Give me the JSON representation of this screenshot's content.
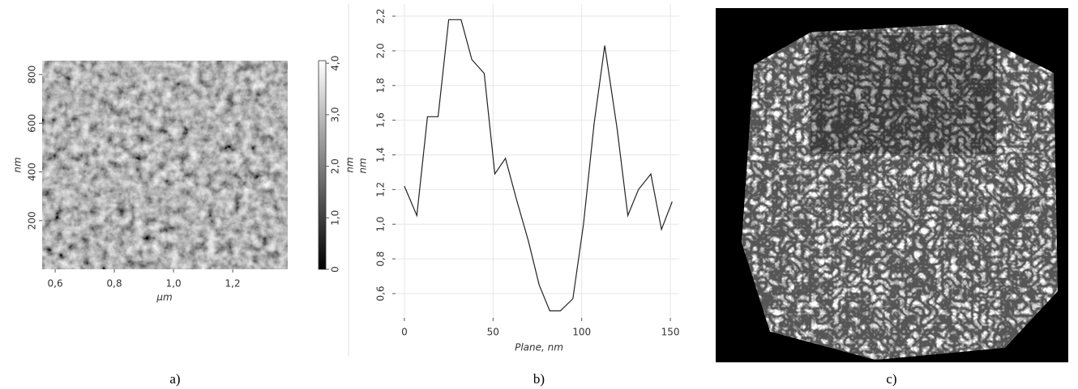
{
  "chart_data": [
    {
      "type": "image",
      "caption": "a)",
      "xlabel": "μm",
      "ylabel": "nm",
      "xlim": [
        0.556,
        1.386
      ],
      "xticks": [
        {
          "value": 0.6,
          "label": "0,6"
        },
        {
          "value": 0.8,
          "label": "0,8"
        },
        {
          "value": 1.0,
          "label": "1,0"
        },
        {
          "value": 1.2,
          "label": "1,2"
        }
      ],
      "ylim": [
        0,
        857
      ],
      "yticks": [
        200,
        400,
        600,
        800
      ],
      "colorbar": {
        "label": "nm",
        "lim": [
          0,
          4.05
        ],
        "ticks": [
          0,
          {
            "value": 1.0,
            "label": "1,0"
          },
          {
            "value": 2.0,
            "label": "2,0"
          },
          {
            "value": 3.0,
            "label": "3,0"
          },
          {
            "value": 4.0,
            "label": "4,0"
          }
        ]
      }
    },
    {
      "type": "line",
      "caption": "b)",
      "xlabel": "Plane, nm",
      "ylabel": "nm",
      "x": [
        0,
        7,
        13,
        19,
        25,
        32,
        38,
        45,
        51,
        57,
        63,
        70,
        76,
        82,
        88,
        95,
        101,
        107,
        113,
        120,
        126,
        132,
        139,
        145,
        151
      ],
      "values": [
        1.22,
        1.05,
        1.62,
        1.62,
        2.18,
        2.18,
        1.95,
        1.87,
        1.29,
        1.38,
        1.15,
        0.9,
        0.65,
        0.5,
        0.5,
        0.57,
        1.0,
        1.58,
        2.03,
        1.55,
        1.05,
        1.2,
        1.29,
        0.97,
        1.13
      ],
      "color": "#222222",
      "grid": true,
      "xlim": [
        -5,
        155
      ],
      "xticks": [
        0,
        50,
        100,
        150
      ],
      "ylim": [
        0.46,
        2.27
      ],
      "yticks": [
        {
          "value": 0.6,
          "label": "0,6"
        },
        {
          "value": 0.8,
          "label": "0,8"
        },
        {
          "value": 1.0,
          "label": "1,0"
        },
        {
          "value": 1.2,
          "label": "1,2"
        },
        {
          "value": 1.4,
          "label": "1,4"
        },
        {
          "value": 1.6,
          "label": "1,6"
        },
        {
          "value": 1.8,
          "label": "1,8"
        },
        {
          "value": 2.0,
          "label": "2,0"
        },
        {
          "value": 2.2,
          "label": "2,2"
        }
      ]
    },
    {
      "type": "image",
      "caption": "c)"
    }
  ]
}
